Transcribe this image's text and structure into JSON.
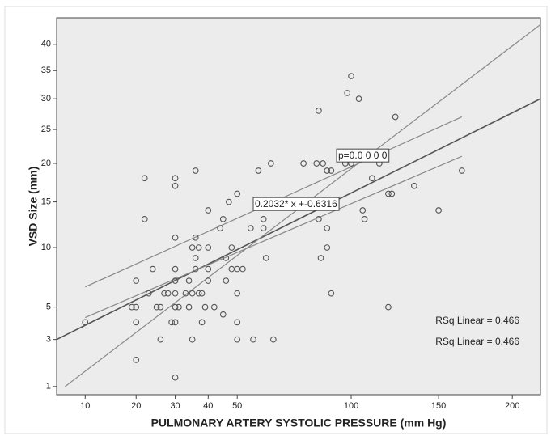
{
  "chart_data": {
    "type": "scatter",
    "xlabel": "PULMONARY ARTERY SYSTOLIC PRESSURE (mm Hg)",
    "ylabel": "VSD Size (mm)",
    "scale": "sqrt",
    "xlim": [
      5.9,
      221
    ],
    "ylim": [
      0.76,
      45.4
    ],
    "xticks": [
      10,
      20,
      30,
      40,
      50,
      100,
      150,
      200
    ],
    "yticks": [
      1,
      3,
      5,
      10,
      15,
      20,
      25,
      30,
      35,
      40
    ],
    "series": [
      {
        "color": "#555555",
        "x": [
          10,
          19,
          20,
          20,
          20,
          20,
          22,
          22,
          23,
          24,
          25,
          26,
          26,
          27,
          28,
          29,
          30,
          30,
          30,
          30,
          30,
          30,
          30,
          30,
          30,
          31,
          33,
          34,
          34,
          35,
          35,
          35,
          36,
          36,
          36,
          36,
          37,
          37,
          38,
          38,
          39,
          40,
          40,
          40,
          40,
          42,
          44,
          45,
          45,
          46,
          46,
          47,
          48,
          48,
          50,
          50,
          50,
          50,
          50,
          52,
          55,
          56,
          58,
          60,
          60,
          61,
          63,
          64,
          77,
          83,
          84,
          84,
          85,
          86,
          88,
          88,
          88,
          90,
          90,
          97,
          98,
          100,
          100,
          104,
          106,
          107,
          111,
          115,
          120,
          120,
          122,
          124,
          135,
          150,
          165
        ],
        "y": [
          4,
          5,
          5,
          4,
          7,
          2,
          18,
          13,
          6,
          8,
          5,
          5,
          3,
          6,
          6,
          4,
          18,
          17,
          11,
          8,
          7,
          6,
          5,
          4,
          1.3,
          5,
          6,
          7,
          5,
          6,
          10,
          3,
          11,
          9,
          19,
          8,
          6,
          10,
          6,
          4,
          5,
          14,
          10,
          7,
          8,
          5,
          12,
          13,
          4.5,
          7,
          9,
          15,
          10,
          8,
          16,
          6,
          4,
          3,
          8,
          8,
          12,
          3,
          19,
          13,
          12,
          9,
          20,
          3,
          20,
          20,
          28,
          13,
          9,
          20,
          12,
          10,
          19,
          6,
          19,
          20,
          31,
          34,
          20,
          30,
          14,
          13,
          18,
          20,
          5,
          16,
          16,
          27,
          17,
          14,
          19
        ]
      }
    ],
    "lines": [
      {
        "color": "#555555",
        "x": [
          5.9,
          221
        ],
        "y": [
          3,
          30
        ]
      },
      {
        "color": "#888888",
        "x": [
          7,
          221
        ],
        "y": [
          1,
          44
        ]
      },
      {
        "color": "#888888",
        "x": [
          10,
          165
        ],
        "y": [
          6.5,
          27
        ]
      },
      {
        "color": "#888888",
        "x": [
          10,
          165
        ],
        "y": [
          4.3,
          21
        ]
      }
    ],
    "annotations": [
      "p=0.0 0 0 0",
      "0.2032* x +-0.6316",
      "RSq Linear = 0.466",
      "RSq Linear = 0.466"
    ],
    "background": "#ececec"
  }
}
